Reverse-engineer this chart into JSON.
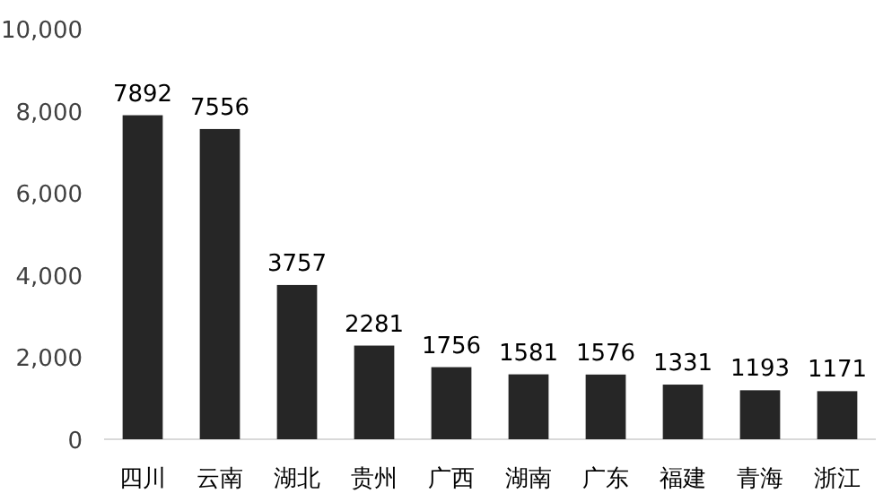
{
  "chart_data": {
    "type": "bar",
    "categories": [
      "四川",
      "云南",
      "湖北",
      "贵州",
      "广西",
      "湖南",
      "广东",
      "福建",
      "青海",
      "浙江"
    ],
    "values": [
      7892,
      7556,
      3757,
      2281,
      1756,
      1581,
      1576,
      1331,
      1193,
      1171
    ],
    "color": "#262626",
    "ylim": [
      0,
      10000
    ],
    "yticks": [
      0,
      {
        "value": 2000,
        "label": "2,000"
      },
      {
        "value": 4000,
        "label": "4,000"
      },
      {
        "value": 6000,
        "label": "6,000"
      },
      {
        "value": 8000,
        "label": "8,000"
      },
      {
        "value": 10000,
        "label": "10,000"
      }
    ],
    "data_labels": true
  }
}
